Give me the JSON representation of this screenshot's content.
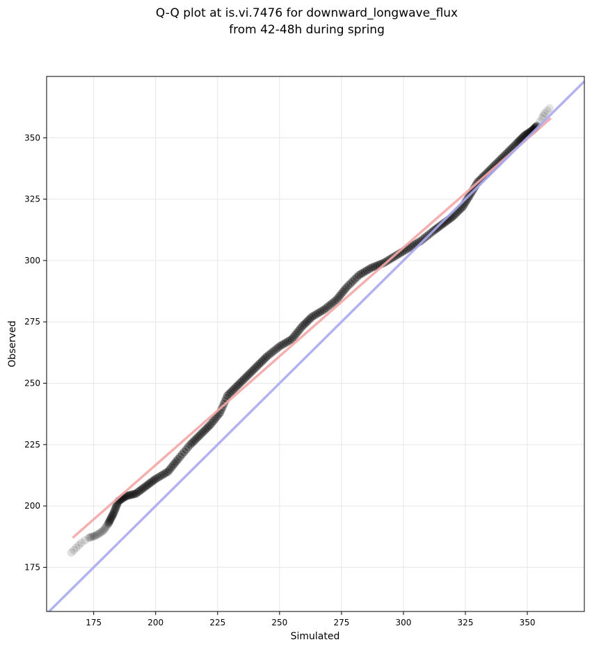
{
  "chart_data": {
    "type": "scatter",
    "title_line1": "Q-Q plot at is.vi.7476 for downward_longwave_flux",
    "title_line2": "from 42-48h during spring",
    "xlabel": "Simulated",
    "ylabel": "Observed",
    "xlim": [
      156,
      373
    ],
    "ylim": [
      157,
      375
    ],
    "xticks": [
      175,
      200,
      225,
      250,
      275,
      300,
      325,
      350
    ],
    "yticks": [
      175,
      200,
      225,
      250,
      275,
      300,
      325,
      350
    ],
    "grid": true,
    "quantile_anchors": [
      [
        166,
        181
      ],
      [
        168,
        183
      ],
      [
        170,
        185
      ],
      [
        173,
        187
      ],
      [
        176,
        188
      ],
      [
        179,
        190
      ],
      [
        181,
        193
      ],
      [
        183,
        197
      ],
      [
        185,
        202
      ],
      [
        188,
        204
      ],
      [
        192,
        205
      ],
      [
        196,
        208
      ],
      [
        200,
        211
      ],
      [
        205,
        214
      ],
      [
        209,
        219
      ],
      [
        214,
        225
      ],
      [
        218,
        229
      ],
      [
        222,
        233
      ],
      [
        226,
        238
      ],
      [
        229,
        245
      ],
      [
        233,
        249
      ],
      [
        237,
        253
      ],
      [
        241,
        257
      ],
      [
        245,
        261
      ],
      [
        250,
        265
      ],
      [
        255,
        268
      ],
      [
        259,
        273
      ],
      [
        263,
        277
      ],
      [
        268,
        280
      ],
      [
        273,
        284
      ],
      [
        277,
        289
      ],
      [
        282,
        294
      ],
      [
        287,
        297
      ],
      [
        292,
        299
      ],
      [
        297,
        302
      ],
      [
        302,
        305
      ],
      [
        307,
        308
      ],
      [
        312,
        312
      ],
      [
        316,
        315
      ],
      [
        320,
        318
      ],
      [
        324,
        322
      ],
      [
        327,
        327
      ],
      [
        330,
        332
      ],
      [
        334,
        336
      ],
      [
        338,
        340
      ],
      [
        342,
        344
      ],
      [
        346,
        348
      ],
      [
        349,
        351
      ],
      [
        352,
        353
      ],
      [
        354,
        355
      ],
      [
        356,
        358
      ],
      [
        357,
        360
      ],
      [
        359,
        362
      ]
    ],
    "fit_line": {
      "color": "#f4a6a6",
      "x": [
        166.5,
        359.5
      ],
      "y": [
        187,
        358
      ]
    },
    "identity_line": {
      "color": "#aaaaf2",
      "x": [
        156,
        373
      ],
      "y": [
        156,
        373
      ]
    },
    "point_color": "#000000"
  }
}
